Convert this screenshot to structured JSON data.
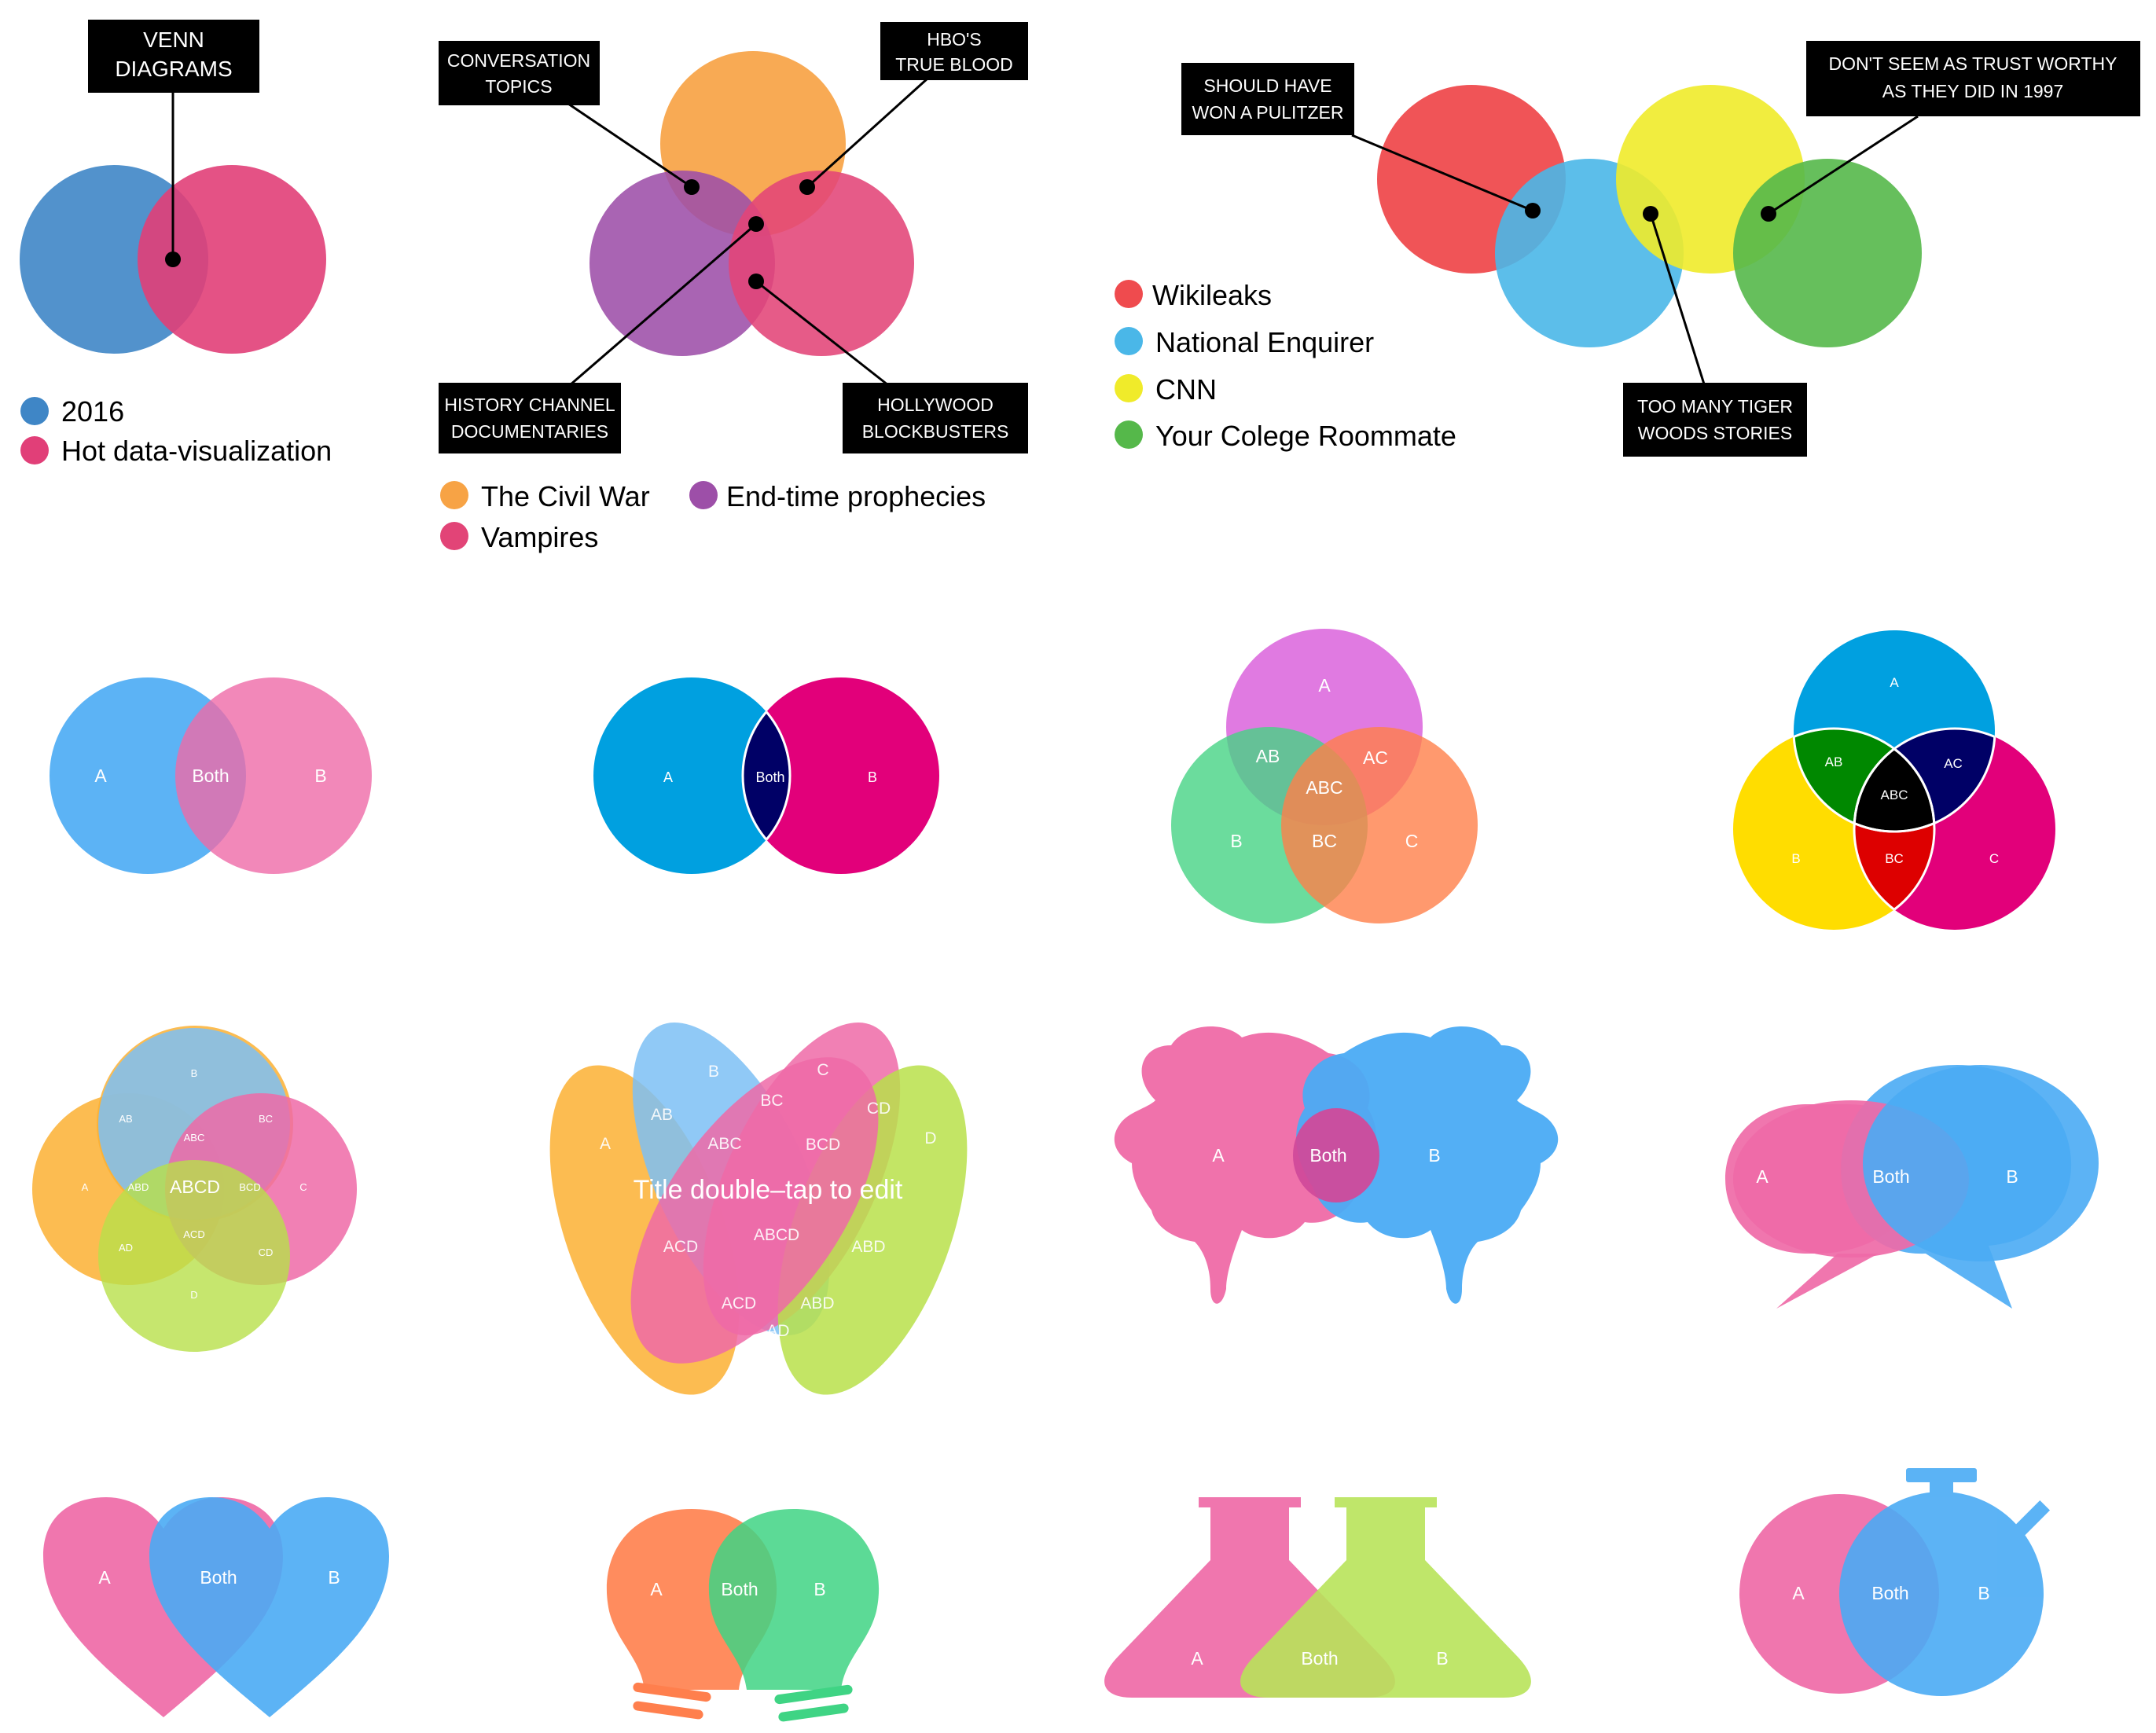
{
  "colors": {
    "blue_2016": "#3f86c6",
    "pink_hot": "#e13f78",
    "orange": "#f7a345",
    "purple": "#9d4fa8",
    "pink": "#e24477",
    "red": "#ef4b4e",
    "sky": "#4ab7e8",
    "yellow": "#f0eb2a",
    "green": "#55b84a",
    "a_blue": "#4aabf4",
    "a_pink": "#ef6aa7",
    "c_cyan": "#00a0e0",
    "c_magenta": "#e2007a",
    "c_navy": "#000066",
    "c3_violet": "#db63dc",
    "c3_green": "#46d385",
    "c3_orange": "#ff7f4a",
    "yel2": "#ffdd00",
    "green2": "#008800",
    "red2": "#dd0000",
    "lightblue": "#7cc0f5",
    "orange4": "#fbb033",
    "lime": "#b8e04a",
    "bulb_orange": "#ff7f4d",
    "bulb_green": "#3fd484",
    "flask_pink": "#ef6aa7",
    "flask_lime": "#b8e35a",
    "black": "#000000",
    "white": "#ffffff"
  },
  "d1": {
    "callout": [
      "VENN",
      "DIAGRAMS"
    ],
    "legend": [
      "2016",
      "Hot data-visualization"
    ]
  },
  "d2": {
    "callouts": {
      "conversation": [
        "CONVERSATION",
        "TOPICS"
      ],
      "hbo": [
        "HBO'S",
        "TRUE BLOOD"
      ],
      "history": [
        "HISTORY CHANNEL",
        "DOCUMENTARIES"
      ],
      "hollywood": [
        "HOLLYWOOD",
        "BLOCKBUSTERS"
      ]
    },
    "legend": [
      "The Civil War",
      "End-time prophecies",
      "Vampires"
    ]
  },
  "d3": {
    "callouts": {
      "pulitzer": [
        "SHOULD HAVE",
        "WON A PULITZER"
      ],
      "trust": [
        "DON'T SEEM AS TRUST WORTHY",
        "AS THEY  DID IN 1997"
      ],
      "tiger": [
        "TOO MANY TIGER",
        "WOODS STORIES"
      ]
    },
    "legend": [
      "Wikileaks",
      "National Enquirer",
      "CNN",
      "Your Colege Roommate"
    ]
  },
  "templates": {
    "two_set": {
      "a": "A",
      "b": "B",
      "both": "Both"
    },
    "three_set": {
      "a": "A",
      "b": "B",
      "c": "C",
      "ab": "AB",
      "ac": "AC",
      "bc": "BC",
      "abc": "ABC"
    },
    "four_set": {
      "a": "A",
      "b": "B",
      "c": "C",
      "d": "D",
      "ab": "AB",
      "bc": "BC",
      "ad": "AD",
      "cd": "CD",
      "abc": "ABC",
      "abd": "ABD",
      "bcd": "BCD",
      "acd": "ACD",
      "abcd": "ABCD"
    },
    "ellipse_title": "Title double–tap to edit"
  }
}
